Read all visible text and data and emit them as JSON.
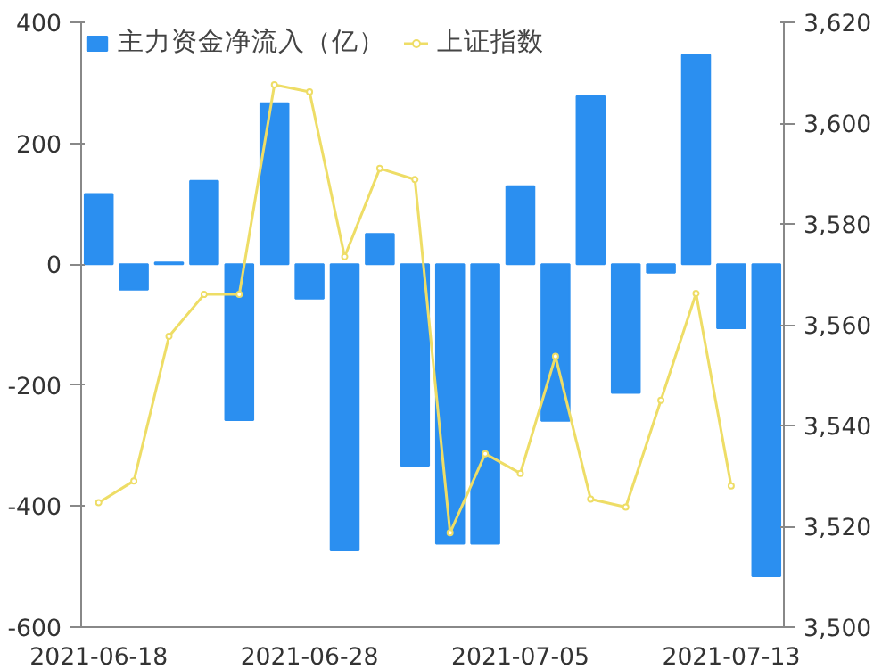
{
  "chart_data": {
    "type": "bar",
    "categories": [
      "2021-06-18",
      null,
      null,
      null,
      null,
      null,
      "2021-06-28",
      null,
      null,
      null,
      null,
      null,
      "2021-07-05",
      null,
      null,
      null,
      null,
      null,
      "2021-07-13",
      null
    ],
    "series": [
      {
        "name": "主力资金净流入（亿）",
        "color": "#2b8ff0",
        "values": [
          116,
          -42,
          3,
          138,
          -258,
          266,
          -57,
          -473,
          50,
          -333,
          -462,
          -462,
          129,
          -259,
          278,
          -213,
          -14,
          346,
          -106,
          -516
        ]
      },
      {
        "name": "上证指数",
        "type": "line",
        "axis": "y2",
        "color": "#eedd66",
        "marker": "circle",
        "values": [
          3524.7,
          3529,
          3557.7,
          3566,
          3566,
          3607.6,
          3606.2,
          3573.5,
          3591,
          3588.8,
          3518.7,
          3534.4,
          3530.5,
          3553.7,
          3525.4,
          3523.8,
          3545,
          3566.2,
          3528,
          null
        ]
      }
    ],
    "ylim": [
      -600,
      400
    ],
    "yticks": [
      -600,
      -400,
      -200,
      0,
      200,
      400
    ],
    "y2lim": [
      3500,
      3620
    ],
    "y2ticks": [
      {
        "value": 3500,
        "label": "3,500"
      },
      {
        "value": 3520,
        "label": "3,520"
      },
      {
        "value": 3540,
        "label": "3,540"
      },
      {
        "value": 3560,
        "label": "3,560"
      },
      {
        "value": 3580,
        "label": "3,580"
      },
      {
        "value": 3600,
        "label": "3,600"
      },
      {
        "value": 3620,
        "label": "3,620"
      }
    ],
    "grid": false,
    "legend": "top left"
  }
}
